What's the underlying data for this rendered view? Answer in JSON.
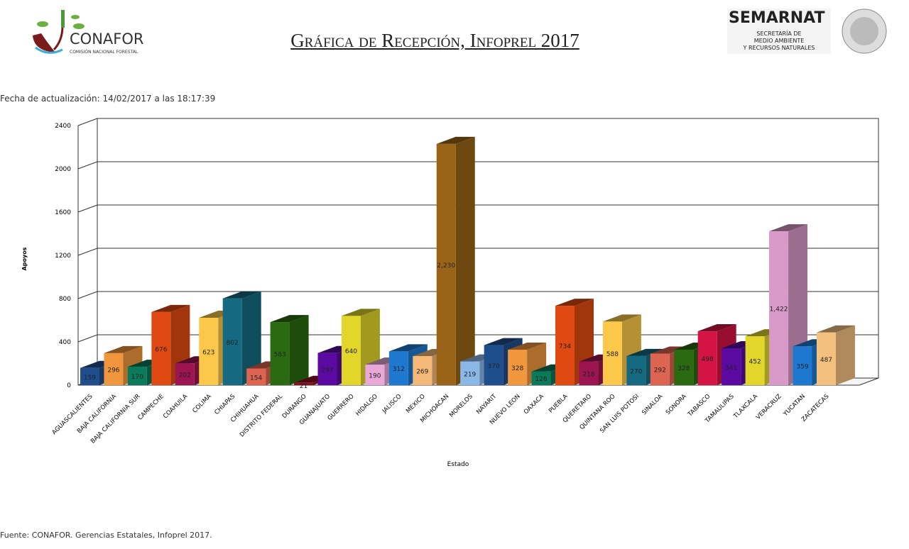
{
  "header": {
    "title": "Gráfica de Recepción, Infoprel 2017",
    "updated": "Fecha de actualización: 14/02/2017 a las 18:17:39",
    "logo_left": "CONAFOR",
    "logo_left_sub": "COMISIÓN NACIONAL FORESTAL",
    "logo_right": "SEMARNAT",
    "logo_right_sub": [
      "SECRETARÍA DE",
      "MEDIO AMBIENTE",
      "Y RECURSOS NATURALES"
    ]
  },
  "footer": {
    "source": "Fuente: CONAFOR. Gerencias Estatales, Infoprel 2017."
  },
  "chart_data": {
    "type": "bar",
    "xlabel": "Estado",
    "ylabel": "Apoyos",
    "ylim": [
      0,
      2400
    ],
    "yticks": [
      0,
      400,
      800,
      1200,
      1600,
      2000,
      2400
    ],
    "grid": true,
    "categories": [
      "AGUASCALIENTES",
      "BAJA CALIFORNIA",
      "BAJA CALIFORNIA SUR",
      "CAMPECHE",
      "COAHUILA",
      "COLIMA",
      "CHIAPAS",
      "CHIHUAHUA",
      "DISTRITO FEDERAL",
      "DURANGO",
      "GUANAJUATO",
      "GUERRERO",
      "HIDALGO",
      "JALISCO",
      "MEXICO",
      "MICHOACAN",
      "MORELOS",
      "NAYARIT",
      "NUEVO LEON",
      "OAXACA",
      "PUEBLA",
      "QUERETARO",
      "QUINTANA ROO",
      "SAN LUIS POTOSI",
      "SINALOA",
      "SONORA",
      "TABASCO",
      "TAMAULIPAS",
      "TLAXCALA",
      "VERACRUZ",
      "YUCATAN",
      "ZACATECAS"
    ],
    "values": [
      159,
      296,
      170,
      676,
      202,
      623,
      802,
      154,
      583,
      21,
      297,
      640,
      190,
      312,
      269,
      2230,
      219,
      370,
      328,
      126,
      734,
      218,
      588,
      270,
      292,
      328,
      498,
      341,
      452,
      1422,
      359,
      487
    ],
    "labels": [
      "159",
      "296",
      "170",
      "676",
      "202",
      "623",
      "802",
      "154",
      "583",
      "21",
      "297",
      "640",
      "190",
      "312",
      "269",
      "2,230",
      "219",
      "370",
      "328",
      "126",
      "734",
      "218",
      "588",
      "270",
      "292",
      "328",
      "498",
      "341",
      "452",
      "1,422",
      "359",
      "487"
    ],
    "colors": [
      "#1f4e8c",
      "#f0963c",
      "#0a7a5a",
      "#e04a12",
      "#9c1450",
      "#fcc84a",
      "#156a82",
      "#dc6450",
      "#2a6a10",
      "#8c1020",
      "#5a0aa0",
      "#e2d62a",
      "#e8a8d8",
      "#1e78d0",
      "#f4b878",
      "#9a6418",
      "#8cb8e8",
      "#1f4e8c",
      "#f0963c",
      "#0a7a5a",
      "#e04a12",
      "#9c1450",
      "#fcc84a",
      "#156a82",
      "#dc6450",
      "#2a6a10",
      "#d41444",
      "#5a0aa0",
      "#e2d62a",
      "#d89ac8",
      "#1e78d0",
      "#f4c080"
    ]
  }
}
